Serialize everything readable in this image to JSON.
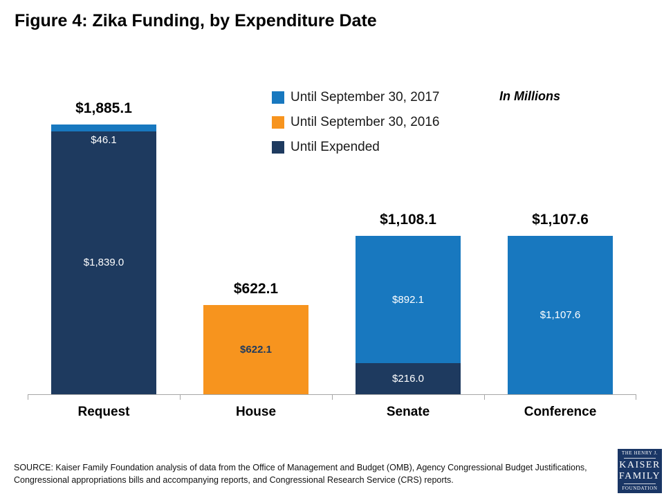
{
  "title": "Figure 4: Zika Funding, by Expenditure Date",
  "in_millions": "In Millions",
  "legend": [
    {
      "label": "Until September 30, 2017",
      "color": "#1878bf"
    },
    {
      "label": "Until September 30, 2016",
      "color": "#f7941e"
    },
    {
      "label": "Until Expended",
      "color": "#1e3a5f"
    }
  ],
  "chart_data": {
    "type": "bar",
    "stacked": true,
    "title": "Figure 4: Zika Funding, by Expenditure Date",
    "units_note": "In Millions",
    "ylabel": "",
    "xlabel": "",
    "ylim": [
      0,
      1885.1
    ],
    "grid": false,
    "legend_position": "top-center",
    "categories": [
      "Request",
      "House",
      "Senate",
      "Conference"
    ],
    "series": [
      {
        "name": "Until September 30, 2017",
        "color": "#1878bf",
        "values": [
          46.1,
          0,
          892.1,
          1107.6
        ]
      },
      {
        "name": "Until September 30, 2016",
        "color": "#f7941e",
        "values": [
          0,
          622.1,
          0,
          0
        ]
      },
      {
        "name": "Until Expended",
        "color": "#1e3a5f",
        "values": [
          1839.0,
          0,
          216.0,
          0
        ]
      }
    ],
    "totals": [
      1885.1,
      622.1,
      1108.1,
      1107.6
    ],
    "total_labels": [
      "$1,885.1",
      "$622.1",
      "$1,108.1",
      "$1,107.6"
    ],
    "bars": [
      {
        "category": "Request",
        "total_label": "$1,885.1",
        "segments": [
          {
            "series": "Until September 30, 2017",
            "value": 46.1,
            "label": "$46.1",
            "color": "#1878bf",
            "label_color": "#ffffff",
            "label_bold": false
          },
          {
            "series": "Until Expended",
            "value": 1839.0,
            "label": "$1,839.0",
            "color": "#1e3a5f",
            "label_color": "#ffffff",
            "label_bold": false
          }
        ]
      },
      {
        "category": "House",
        "total_label": "$622.1",
        "segments": [
          {
            "series": "Until September 30, 2016",
            "value": 622.1,
            "label": "$622.1",
            "color": "#f7941e",
            "label_color": "#1e3a5f",
            "label_bold": true
          }
        ]
      },
      {
        "category": "Senate",
        "total_label": "$1,108.1",
        "segments": [
          {
            "series": "Until September 30, 2017",
            "value": 892.1,
            "label": "$892.1",
            "color": "#1878bf",
            "label_color": "#ffffff",
            "label_bold": false
          },
          {
            "series": "Until Expended",
            "value": 216.0,
            "label": "$216.0",
            "color": "#1e3a5f",
            "label_color": "#ffffff",
            "label_bold": false
          }
        ]
      },
      {
        "category": "Conference",
        "total_label": "$1,107.6",
        "segments": [
          {
            "series": "Until September 30, 2017",
            "value": 1107.6,
            "label": "$1,107.6",
            "color": "#1878bf",
            "label_color": "#ffffff",
            "label_bold": false
          }
        ]
      }
    ]
  },
  "source": {
    "text": "SOURCE: Kaiser Family Foundation analysis of data from the Office of Management and Budget (OMB), Agency Congressional Budget Justifications, Congressional appropriations bills and accompanying reports, and Congressional Research Service (CRS) reports."
  },
  "logo": {
    "line1": "THE HENRY J.",
    "line2": "KAISER",
    "line3": "FAMILY",
    "line4": "FOUNDATION"
  }
}
